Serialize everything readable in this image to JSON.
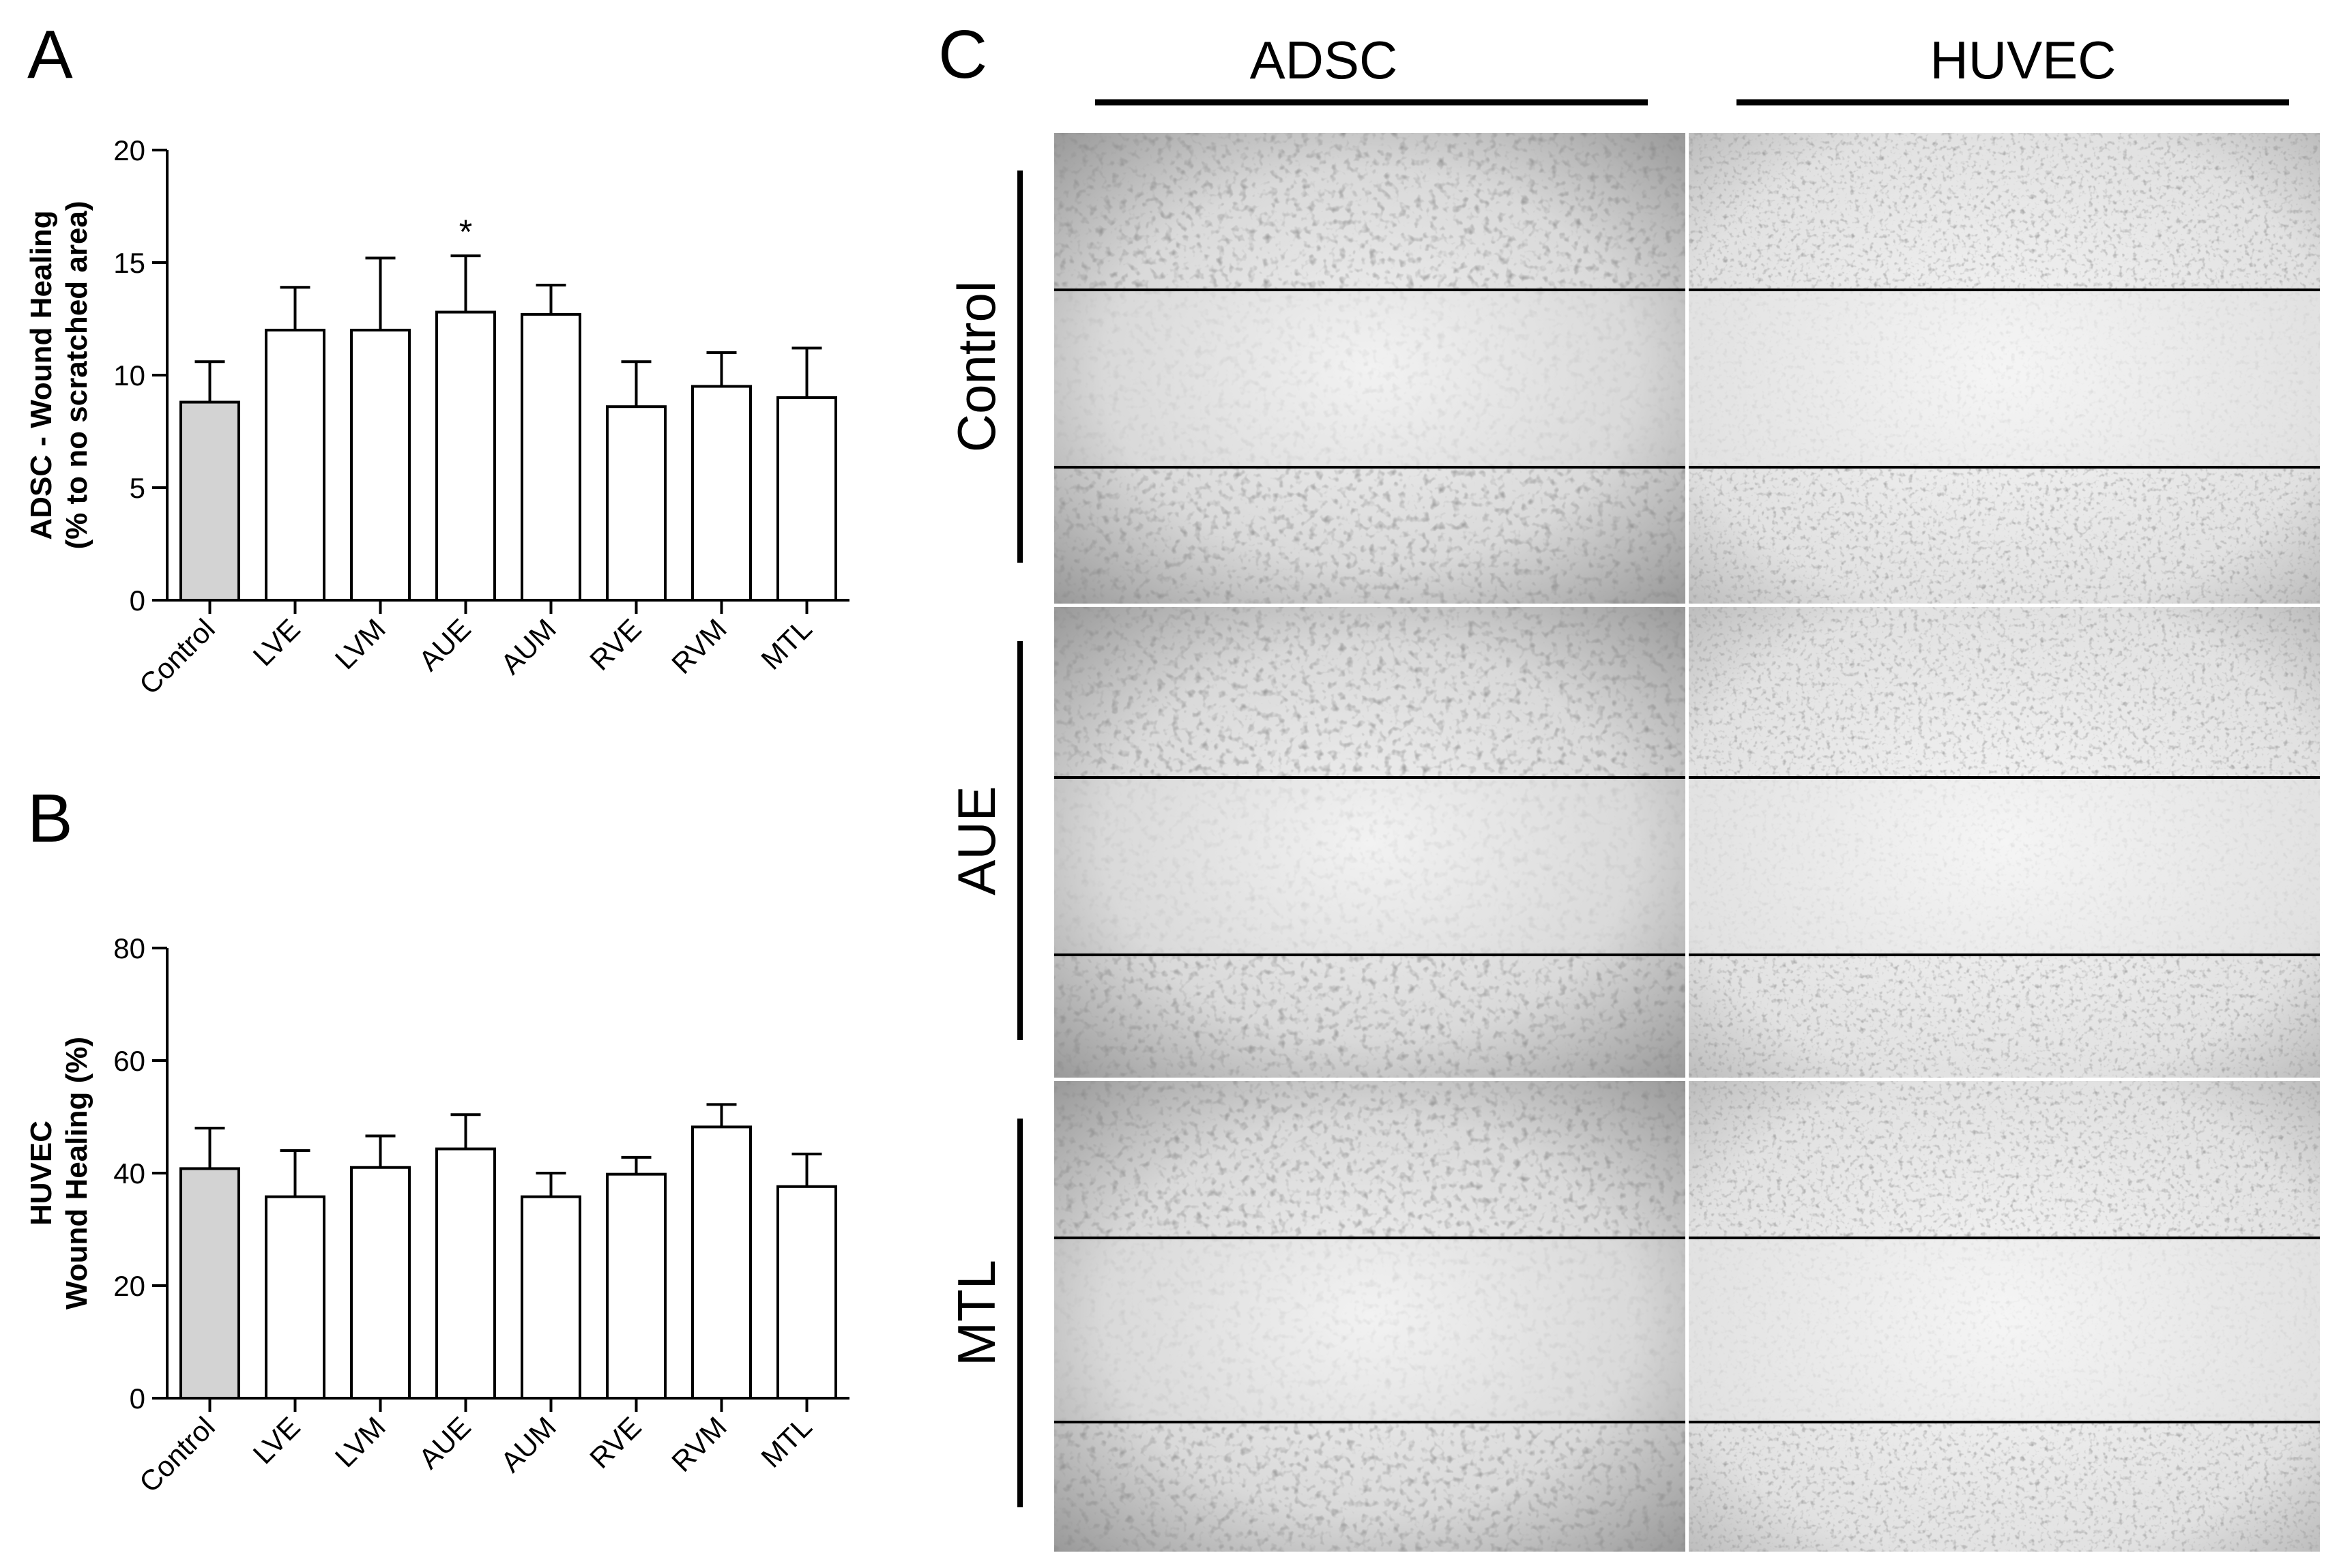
{
  "panels": {
    "a": "A",
    "b": "B",
    "c": "C"
  },
  "chart_data": [
    {
      "type": "bar",
      "title": "",
      "ylabel_line1": "ADSC - Wound Healing",
      "ylabel_line2": "(% to no scratched area)",
      "categories": [
        "Control",
        "LVE",
        "LVM",
        "AUE",
        "AUM",
        "RVE",
        "RVM",
        "MTL"
      ],
      "values": [
        8.8,
        12.0,
        12.0,
        12.8,
        12.7,
        8.6,
        9.5,
        9.0
      ],
      "errors": [
        1.8,
        1.9,
        3.2,
        2.5,
        1.3,
        2.0,
        1.5,
        2.2
      ],
      "annotations": [
        "",
        "",
        "",
        "*",
        "",
        "",
        "",
        ""
      ],
      "ylim": [
        0,
        20
      ],
      "yticks": [
        0,
        5,
        10,
        15,
        20
      ],
      "colors": {
        "control": "#d3d3d3",
        "other": "#ffffff",
        "stroke": "#000000"
      }
    },
    {
      "type": "bar",
      "title": "",
      "ylabel_line1": "HUVEC",
      "ylabel_line2": "Wound Healing (%)",
      "categories": [
        "Control",
        "LVE",
        "LVM",
        "AUE",
        "AUM",
        "RVE",
        "RVM",
        "MTL"
      ],
      "values": [
        40.8,
        35.8,
        41.0,
        44.3,
        35.8,
        39.8,
        48.2,
        37.6
      ],
      "errors": [
        7.2,
        8.2,
        5.6,
        6.1,
        4.2,
        3.0,
        4.0,
        5.8
      ],
      "annotations": [
        "",
        "",
        "",
        "",
        "",
        "",
        "",
        ""
      ],
      "ylim": [
        0,
        80
      ],
      "yticks": [
        0,
        20,
        40,
        60,
        80
      ],
      "colors": {
        "control": "#d3d3d3",
        "other": "#ffffff",
        "stroke": "#000000"
      }
    }
  ],
  "micrographs": {
    "columns": [
      "ADSC",
      "HUVEC"
    ],
    "rows": [
      "Control",
      "AUE",
      "MTL"
    ]
  }
}
